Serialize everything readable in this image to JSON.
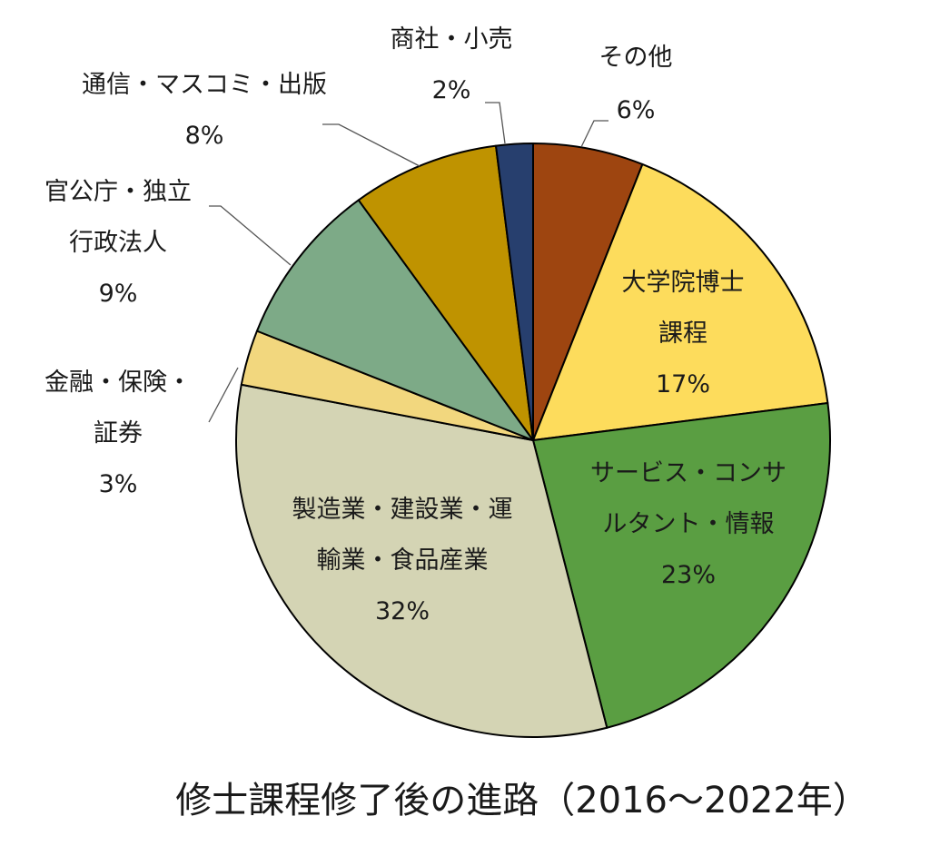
{
  "chart_data": {
    "type": "pie",
    "title": "修士課程修了後の進路（2016～2022年）",
    "unit": "%",
    "slices": [
      {
        "label_lines": [
          "その他"
        ],
        "value_label": "6%",
        "value": 6,
        "color": "#9E4510"
      },
      {
        "label_lines": [
          "大学院博士",
          "課程"
        ],
        "value_label": "17%",
        "value": 17,
        "color": "#FDDC5C"
      },
      {
        "label_lines": [
          "サービス・コンサ",
          "ルタント・情報"
        ],
        "value_label": "23%",
        "value": 23,
        "color": "#5A9E42"
      },
      {
        "label_lines": [
          "製造業・建設業・運",
          "輸業・食品産業"
        ],
        "value_label": "32%",
        "value": 32,
        "color": "#D4D4B4"
      },
      {
        "label_lines": [
          "金融・保険・",
          "証券"
        ],
        "value_label": "3%",
        "value": 3,
        "color": "#F2D77E"
      },
      {
        "label_lines": [
          "官公庁・独立",
          "行政法人"
        ],
        "value_label": "9%",
        "value": 9,
        "color": "#7DAA87"
      },
      {
        "label_lines": [
          "通信・マスコミ・出版"
        ],
        "value_label": "8%",
        "value": 8,
        "color": "#BF9300"
      },
      {
        "label_lines": [
          "商社・小売"
        ],
        "value_label": "2%",
        "value": 2,
        "color": "#273F6E"
      }
    ]
  }
}
